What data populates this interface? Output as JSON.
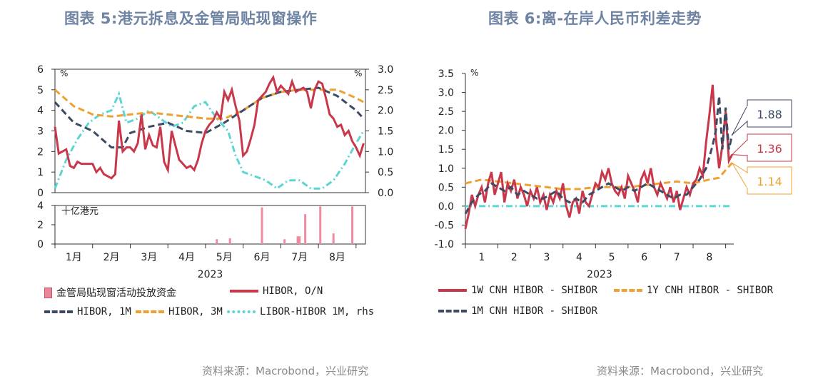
{
  "titles": {
    "left": "图表 5:港元拆息及金管局贴现窗操作",
    "right": "图表 6:离-在岸人民币利差走势"
  },
  "sources": {
    "left": "资料来源：Macrobond，兴业研究",
    "right": "资料来源：Macrobond，兴业研究"
  },
  "colors": {
    "red": "#c8384a",
    "navy": "#3d4a63",
    "orange": "#f0a030",
    "cyan": "#5cd6d3",
    "pink": "#f08aa0",
    "title": "#6f84a3"
  },
  "legend_left": {
    "discount_window": "金管局贴现窗活动投放资金",
    "hibor_on": "HIBOR, O/N",
    "hibor_1m": "HIBOR, 1M",
    "hibor_3m": "HIBOR, 3M",
    "libor_hibor": "LIBOR-HIBOR 1M, rhs"
  },
  "legend_right": {
    "w1": "1W CNH HIBOR - SHIBOR",
    "y1": "1Y CNH HIBOR - SHIBOR",
    "m1": "1M CNH HIBOR - SHIBOR"
  },
  "chart_data": [
    {
      "type": "line",
      "panel": "top",
      "year_label": "2023",
      "left_unit": "%",
      "right_unit": "%",
      "ylim_left": [
        0,
        6
      ],
      "ylim_right": [
        0,
        3
      ],
      "yticks_left": [
        "0",
        "1",
        "2",
        "3",
        "4",
        "5",
        "6"
      ],
      "yticks_right": [
        "0.0",
        "0.5",
        "1.0",
        "1.5",
        "2.0",
        "2.5",
        "3.0"
      ],
      "x_domain": [
        0,
        8.25
      ],
      "month_labels": [
        "1月",
        "2月",
        "3月",
        "4月",
        "5月",
        "6月",
        "7月",
        "8月"
      ],
      "series": [
        {
          "name": "HIBOR, O/N",
          "axis": "left",
          "x": [
            0,
            0.1,
            0.2,
            0.3,
            0.4,
            0.5,
            0.6,
            0.7,
            0.8,
            0.9,
            1.0,
            1.1,
            1.2,
            1.3,
            1.4,
            1.5,
            1.6,
            1.7,
            1.8,
            1.9,
            2.0,
            2.1,
            2.2,
            2.3,
            2.4,
            2.5,
            2.6,
            2.7,
            2.8,
            2.9,
            3.0,
            3.1,
            3.2,
            3.3,
            3.4,
            3.5,
            3.6,
            3.7,
            3.8,
            3.9,
            4.0,
            4.1,
            4.2,
            4.3,
            4.4,
            4.5,
            4.6,
            4.7,
            4.8,
            4.9,
            5.0,
            5.1,
            5.2,
            5.3,
            5.4,
            5.5,
            5.6,
            5.7,
            5.8,
            5.9,
            6.0,
            6.1,
            6.2,
            6.3,
            6.4,
            6.5,
            6.6,
            6.7,
            6.8,
            6.9,
            7.0,
            7.1,
            7.2,
            7.3,
            7.4,
            7.5,
            7.6,
            7.7,
            7.8,
            7.9,
            8.0,
            8.1,
            8.2
          ],
          "values": [
            3.2,
            1.9,
            2.0,
            2.1,
            1.3,
            1.2,
            1.5,
            1.4,
            1.4,
            1.4,
            1.4,
            1.0,
            1.2,
            0.9,
            0.8,
            0.7,
            0.9,
            3.5,
            2.0,
            2.2,
            2.2,
            2.0,
            2.4,
            3.8,
            2.1,
            2.8,
            2.3,
            2.2,
            3.2,
            1.5,
            1.1,
            3.0,
            2.3,
            1.6,
            1.4,
            1.2,
            1.3,
            1.1,
            1.6,
            2.4,
            3.0,
            3.3,
            3.5,
            3.9,
            3.6,
            4.9,
            4.5,
            5.0,
            4.2,
            3.5,
            1.8,
            2.0,
            2.6,
            3.3,
            4.5,
            4.7,
            4.9,
            5.3,
            5.6,
            4.9,
            5.2,
            5.0,
            4.8,
            5.4,
            4.9,
            5.0,
            5.1,
            4.9,
            4.1,
            5.0,
            5.4,
            5.3,
            4.6,
            3.8,
            3.6,
            3.2,
            3.3,
            2.8,
            3.0,
            2.5,
            2.2,
            1.8,
            2.4
          ]
        },
        {
          "name": "HIBOR, 1M",
          "axis": "left",
          "x": [
            0,
            0.5,
            1.0,
            1.5,
            1.8,
            2.0,
            2.5,
            3.0,
            3.5,
            4.0,
            4.5,
            5.0,
            5.5,
            6.0,
            6.5,
            7.0,
            7.5,
            8.0,
            8.2
          ],
          "values": [
            4.4,
            3.4,
            3.0,
            2.2,
            2.2,
            2.9,
            3.2,
            3.4,
            3.0,
            2.9,
            3.4,
            4.0,
            4.6,
            4.9,
            5.0,
            5.1,
            4.7,
            4.0,
            3.6
          ]
        },
        {
          "name": "HIBOR, 3M",
          "axis": "left",
          "x": [
            0,
            0.5,
            1.0,
            1.5,
            2.0,
            2.5,
            3.0,
            3.5,
            4.0,
            4.5,
            5.0,
            5.5,
            6.0,
            6.5,
            7.0,
            7.5,
            8.0,
            8.2
          ],
          "values": [
            5.0,
            4.2,
            3.8,
            3.7,
            3.8,
            3.9,
            3.8,
            3.7,
            3.6,
            3.6,
            4.0,
            4.6,
            4.9,
            5.0,
            5.0,
            5.0,
            4.6,
            4.4
          ]
        },
        {
          "name": "LIBOR-HIBOR 1M, rhs",
          "axis": "right",
          "x": [
            0,
            0.3,
            0.6,
            0.9,
            1.2,
            1.5,
            1.7,
            1.9,
            2.2,
            2.5,
            2.8,
            3.1,
            3.4,
            3.7,
            4.0,
            4.3,
            4.6,
            4.8,
            5.0,
            5.3,
            5.6,
            5.9,
            6.2,
            6.5,
            6.8,
            7.1,
            7.4,
            7.7,
            8.0,
            8.2
          ],
          "values": [
            0.1,
            0.8,
            1.3,
            1.7,
            1.9,
            2.0,
            2.4,
            1.7,
            1.8,
            2.0,
            1.8,
            1.6,
            1.7,
            2.1,
            2.2,
            1.8,
            1.5,
            0.9,
            0.5,
            0.4,
            0.3,
            0.1,
            0.3,
            0.3,
            0.1,
            0.1,
            0.3,
            0.7,
            1.2,
            1.5
          ]
        }
      ]
    },
    {
      "type": "bar",
      "panel": "bottom",
      "unit": "十亿港元",
      "ylim": [
        0,
        4
      ],
      "yticks": [
        "0",
        "2",
        "4"
      ],
      "x": [
        4.3,
        4.65,
        5.5,
        6.1,
        6.45,
        6.5,
        6.65,
        7.05,
        7.4,
        7.9
      ],
      "values": [
        0.5,
        0.6,
        3.8,
        0.5,
        0.8,
        0.8,
        3.1,
        3.9,
        1.1,
        3.9
      ],
      "series_name": "金管局贴现窗活动投放资金"
    },
    {
      "type": "line",
      "panel": "right",
      "year_label": "2023",
      "unit": "%",
      "ylim": [
        -1.0,
        3.5
      ],
      "yticks": [
        "-1.0",
        "-0.5",
        "0.0",
        "0.5",
        "1.0",
        "1.5",
        "2.0",
        "2.5",
        "3.0",
        "3.5"
      ],
      "x_domain": [
        0,
        8.25
      ],
      "month_labels": [
        "1",
        "2",
        "3",
        "4",
        "5",
        "6",
        "7",
        "8"
      ],
      "callouts": [
        "1.88",
        "1.36",
        "1.14"
      ],
      "series": [
        {
          "name": "1W CNH HIBOR - SHIBOR",
          "x": [
            0,
            0.1,
            0.2,
            0.3,
            0.4,
            0.5,
            0.6,
            0.7,
            0.8,
            0.9,
            1.0,
            1.1,
            1.2,
            1.3,
            1.4,
            1.5,
            1.6,
            1.7,
            1.8,
            1.9,
            2.0,
            2.1,
            2.2,
            2.3,
            2.4,
            2.5,
            2.6,
            2.7,
            2.8,
            2.9,
            3.0,
            3.1,
            3.2,
            3.3,
            3.4,
            3.5,
            3.6,
            3.7,
            3.8,
            3.9,
            4.0,
            4.1,
            4.2,
            4.3,
            4.4,
            4.5,
            4.6,
            4.7,
            4.8,
            4.9,
            5.0,
            5.1,
            5.2,
            5.3,
            5.4,
            5.5,
            5.6,
            5.7,
            5.8,
            5.9,
            6.0,
            6.1,
            6.2,
            6.3,
            6.4,
            6.5,
            6.6,
            6.7,
            6.8,
            6.9,
            7.0,
            7.1,
            7.2,
            7.3,
            7.4,
            7.5,
            7.6,
            7.7,
            7.8,
            7.9,
            8.0,
            8.1,
            8.2
          ],
          "values": [
            -0.6,
            -0.2,
            0.3,
            0.0,
            0.3,
            0.5,
            0.1,
            0.6,
            0.9,
            0.3,
            0.6,
            0.9,
            0.1,
            0.6,
            0.4,
            0.7,
            0.2,
            0.5,
            0.3,
            0.0,
            0.4,
            0.2,
            0.5,
            0.1,
            0.3,
            -0.1,
            0.3,
            0.1,
            0.4,
            0.2,
            0.6,
            0.0,
            -0.3,
            0.1,
            0.2,
            -0.2,
            0.4,
            0.1,
            0.0,
            0.3,
            0.6,
            0.5,
            0.9,
            0.7,
            1.0,
            0.6,
            0.4,
            0.3,
            0.5,
            0.2,
            0.8,
            0.6,
            0.4,
            0.1,
            0.7,
            0.9,
            0.6,
            1.0,
            0.5,
            0.3,
            0.6,
            0.4,
            0.2,
            0.5,
            0.1,
            0.4,
            -0.1,
            0.2,
            0.5,
            0.3,
            0.6,
            0.7,
            1.0,
            0.8,
            1.7,
            2.4,
            3.2,
            1.8,
            1.0,
            1.6,
            2.5,
            1.2,
            1.36
          ]
        },
        {
          "name": "1Y CNH HIBOR - SHIBOR",
          "x": [
            0,
            0.5,
            1.0,
            1.5,
            2.0,
            2.5,
            3.0,
            3.5,
            4.0,
            4.5,
            5.0,
            5.5,
            6.0,
            6.5,
            7.0,
            7.5,
            7.8,
            8.0,
            8.2
          ],
          "values": [
            0.6,
            0.7,
            0.65,
            0.6,
            0.55,
            0.5,
            0.45,
            0.45,
            0.5,
            0.5,
            0.5,
            0.55,
            0.6,
            0.65,
            0.6,
            0.7,
            0.75,
            0.95,
            1.14
          ]
        },
        {
          "name": "1M CNH HIBOR - SHIBOR",
          "x": [
            0,
            0.2,
            0.4,
            0.6,
            0.8,
            1.0,
            1.2,
            1.4,
            1.6,
            1.8,
            2.0,
            2.2,
            2.4,
            2.6,
            2.8,
            3.0,
            3.2,
            3.4,
            3.6,
            3.8,
            4.0,
            4.2,
            4.4,
            4.6,
            4.8,
            5.0,
            5.2,
            5.4,
            5.6,
            5.8,
            6.0,
            6.2,
            6.4,
            6.6,
            6.8,
            7.0,
            7.2,
            7.4,
            7.6,
            7.7,
            7.8,
            7.9,
            8.0,
            8.1,
            8.2
          ],
          "values": [
            -0.2,
            0.1,
            0.3,
            0.4,
            0.6,
            0.5,
            0.4,
            0.5,
            0.3,
            0.4,
            0.3,
            0.2,
            0.2,
            0.3,
            0.4,
            0.2,
            0.1,
            0.2,
            0.1,
            0.3,
            0.4,
            0.5,
            0.6,
            0.5,
            0.4,
            0.5,
            0.4,
            0.5,
            0.6,
            0.5,
            0.4,
            0.3,
            0.2,
            0.3,
            0.3,
            0.5,
            0.7,
            1.0,
            1.6,
            2.0,
            2.9,
            1.5,
            2.6,
            1.5,
            1.88
          ]
        },
        {
          "name": "zero",
          "x": [
            0,
            8.2
          ],
          "values": [
            0,
            0
          ]
        }
      ]
    }
  ]
}
